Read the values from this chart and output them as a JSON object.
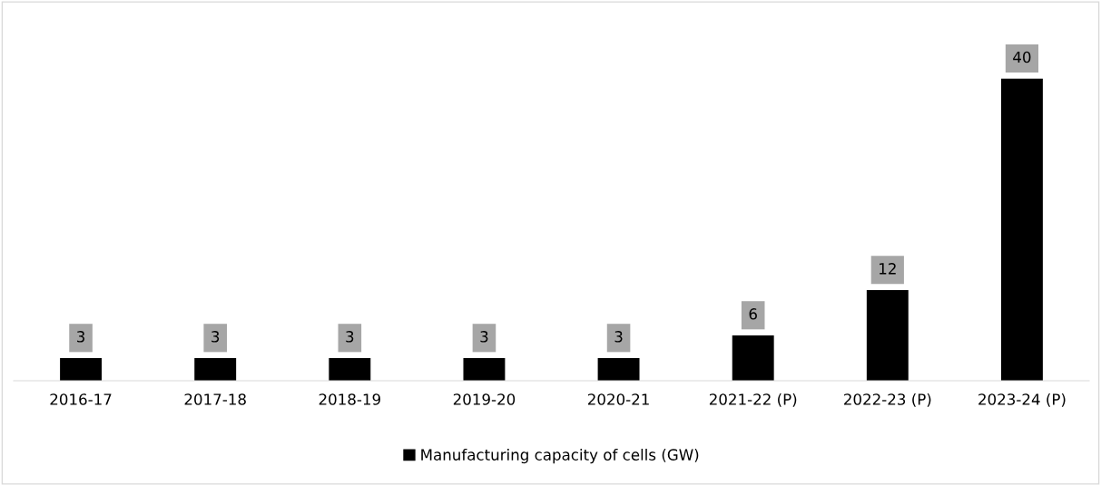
{
  "chart_data": {
    "type": "bar",
    "categories": [
      "2016-17",
      "2017-18",
      "2018-19",
      "2019-20",
      "2020-21",
      "2021-22 (P)",
      "2022-23 (P)",
      "2023-24 (P)"
    ],
    "series": [
      {
        "name": "Manufacturing capacity of cells (GW)",
        "color": "#000000",
        "values": [
          3,
          3,
          3,
          3,
          3,
          6,
          12,
          40
        ]
      }
    ],
    "data_labels": true,
    "legend": "bottom",
    "grid": false
  }
}
